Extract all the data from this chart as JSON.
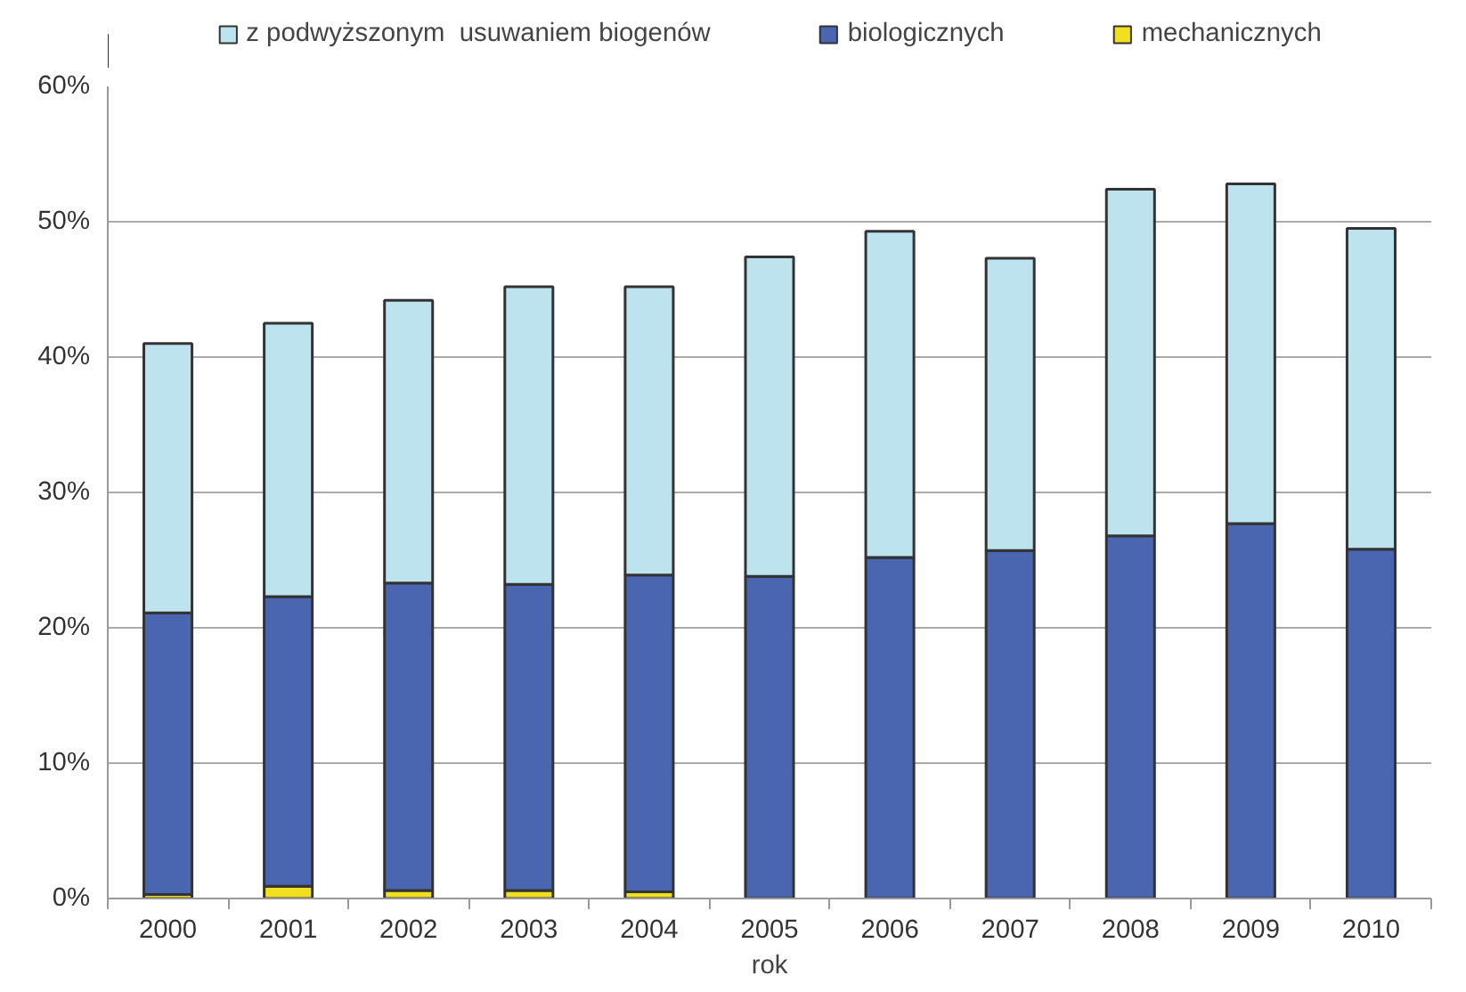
{
  "chart_data": {
    "type": "bar",
    "stacked": true,
    "xlabel": "rok",
    "categories": [
      "2000",
      "2001",
      "2002",
      "2003",
      "2004",
      "2005",
      "2006",
      "2007",
      "2008",
      "2009",
      "2010"
    ],
    "series": [
      {
        "name": "mechanicznych",
        "color": "#f0e020",
        "values": [
          0.3,
          0.9,
          0.6,
          0.6,
          0.5,
          0,
          0,
          0,
          0,
          0,
          0
        ]
      },
      {
        "name": "biologicznych",
        "color": "#4a66b0",
        "values": [
          20.8,
          21.4,
          22.7,
          22.6,
          23.4,
          23.8,
          25.2,
          25.7,
          26.8,
          27.7,
          25.8
        ]
      },
      {
        "name": "z podwyższonym  usuwaniem biogenów",
        "color": "#bde3ee",
        "values": [
          19.9,
          20.2,
          20.9,
          22.0,
          21.3,
          23.6,
          24.1,
          21.6,
          25.6,
          25.1,
          23.7
        ]
      }
    ],
    "ylim": [
      0,
      60
    ],
    "yticks": [
      {
        "value": 0,
        "label": "0%"
      },
      {
        "value": 10,
        "label": "10%"
      },
      {
        "value": 20,
        "label": "20%"
      },
      {
        "value": 30,
        "label": "30%"
      },
      {
        "value": 40,
        "label": "40%"
      },
      {
        "value": 50,
        "label": "50%"
      },
      {
        "value": 60,
        "label": "60%"
      }
    ],
    "grid": "y",
    "legend": "top"
  }
}
